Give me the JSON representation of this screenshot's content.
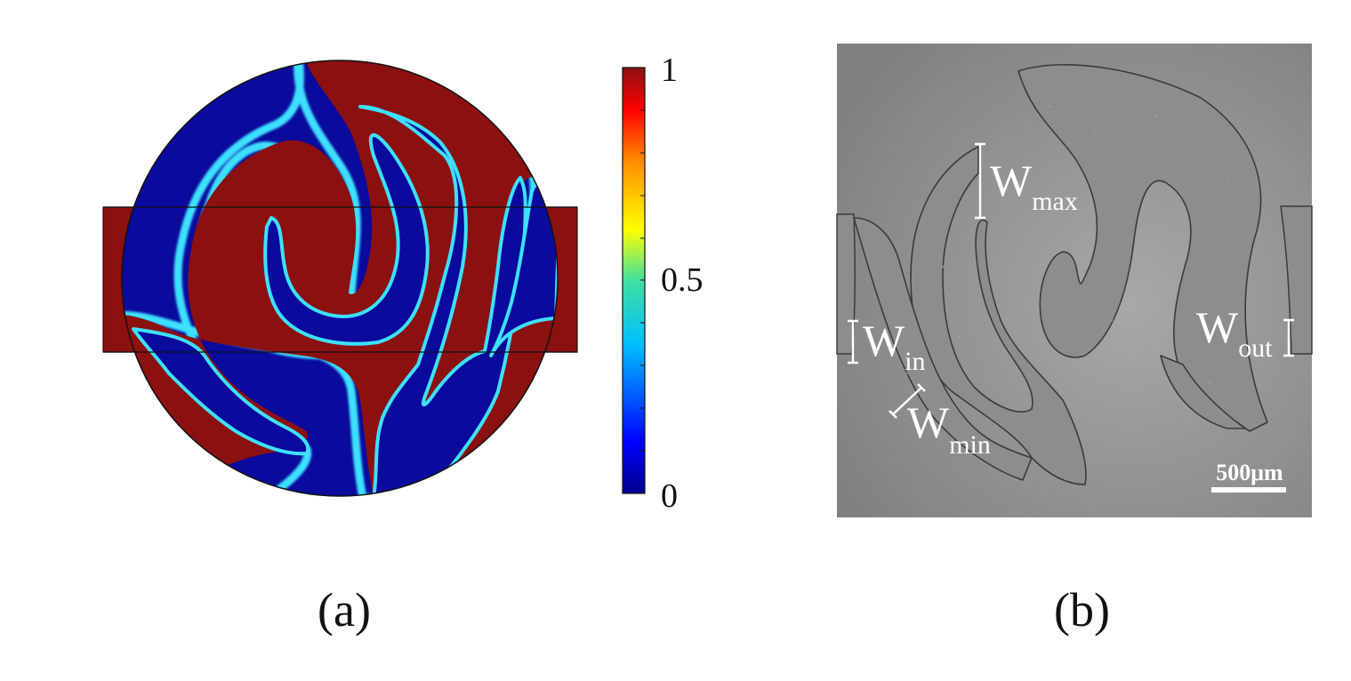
{
  "panel_a": {
    "caption": "(a)",
    "colorbar": {
      "ticks": [
        "1",
        "0.5",
        "0"
      ],
      "range": [
        0,
        1
      ],
      "colormap": [
        "#00008b",
        "#0000ff",
        "#00bfff",
        "#40e0a0",
        "#ffff00",
        "#ff8c00",
        "#ff0000",
        "#8b1010"
      ]
    },
    "colors": {
      "high": "#8b1010",
      "low": "#0a0a9c",
      "interface": "#3de0ff"
    }
  },
  "panel_b": {
    "caption": "(b)",
    "labels": {
      "w_max": {
        "base": "W",
        "sub": "max"
      },
      "w_in": {
        "base": "W",
        "sub": "in"
      },
      "w_min": {
        "base": "W",
        "sub": "min"
      },
      "w_out": {
        "base": "W",
        "sub": "out"
      }
    },
    "scale_bar": "500μm"
  }
}
